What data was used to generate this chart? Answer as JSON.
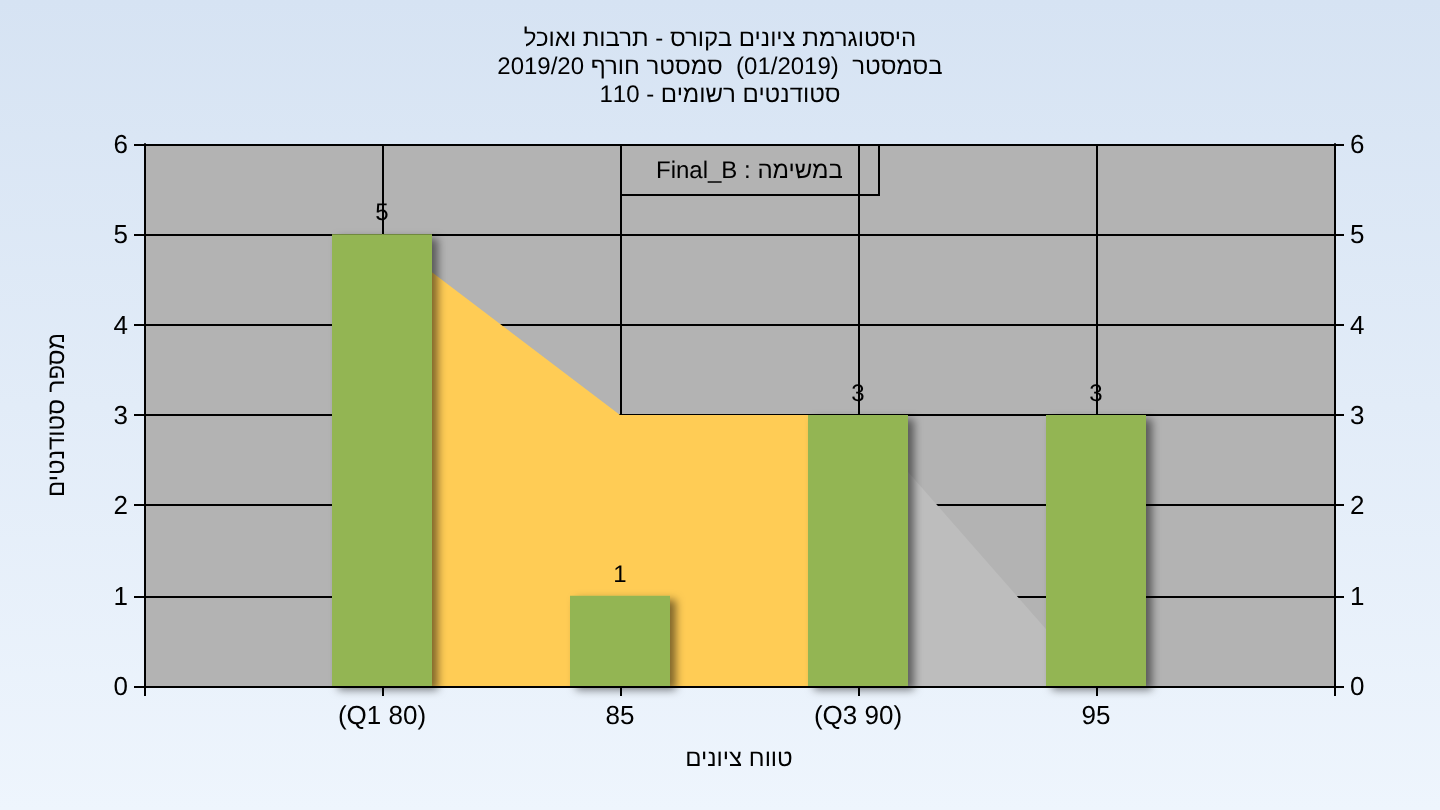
{
  "chart_data": {
    "type": "bar",
    "title": "היסטוגרמת ציונים בקורס - תרבות ואוכל",
    "subtitle": "בסמסטר  (01/2019)  סמסטר חורף 2019/20\nסטודנטים רשומים - 110",
    "xlabel": "טווח ציונים",
    "ylabel": "מספר סטודנטים",
    "annotations": [
      "במשימה : Final_B"
    ],
    "categories": [
      null,
      "(Q1 80)",
      "85",
      "(Q3 90)",
      "95",
      null
    ],
    "series": [
      {
        "type": "area",
        "color": "#ffcc55",
        "values": [
          null,
          5,
          3,
          3,
          null,
          null
        ]
      },
      {
        "type": "area",
        "color": "#bdbdbd",
        "values": [
          null,
          null,
          null,
          3,
          0,
          null
        ]
      },
      {
        "color": "#93b552",
        "values": [
          null,
          5,
          1,
          3,
          3,
          null
        ],
        "value_labels": [
          null,
          "5",
          "1",
          "3",
          "3",
          null
        ]
      }
    ],
    "ylim": [
      0,
      6
    ],
    "yticks": [
      0,
      1,
      2,
      3,
      4,
      5,
      6
    ],
    "y2lim": [
      0,
      6
    ],
    "y2ticks": [
      0,
      1,
      2,
      3,
      4,
      5,
      6
    ],
    "grid": true
  }
}
